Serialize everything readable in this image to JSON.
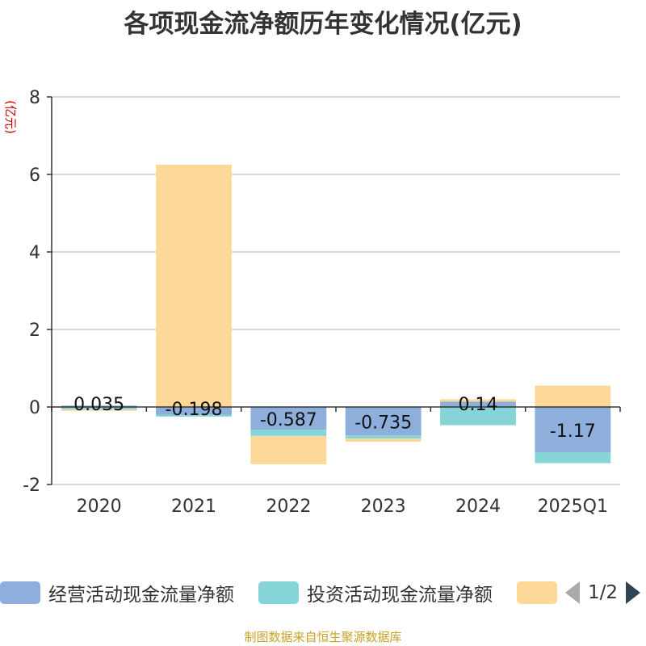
{
  "title": "各项现金流净额历年变化情况(亿元)",
  "source": "制图数据来自恒生聚源数据库",
  "colors": {
    "operating": "#8eaedb",
    "investing": "#85d4d8",
    "financing": "#fed898",
    "axis": "#333333",
    "grid": "#c8c8c8",
    "ylabel": "#cc0000"
  },
  "legend": {
    "items": [
      {
        "name": "经营活动现金流量净额",
        "color": "#8eaedb"
      },
      {
        "name": "投资活动现金流量净额",
        "color": "#85d4d8"
      },
      {
        "name": "",
        "color": "#fed898"
      }
    ],
    "page": "1/2"
  },
  "chart_data": {
    "type": "bar",
    "stacked": true,
    "ylabel": "(亿元)",
    "ylim": [
      -2,
      8
    ],
    "yticks": [
      -2,
      0,
      2,
      4,
      6,
      8
    ],
    "grid": true,
    "categories": [
      "2020",
      "2021",
      "2022",
      "2023",
      "2024",
      "2025Q1"
    ],
    "series": [
      {
        "name": "经营活动现金流量净额",
        "key": "operating",
        "values": [
          0.035,
          -0.198,
          -0.587,
          -0.735,
          0.14,
          -1.17
        ]
      },
      {
        "name": "投资活动现金流量净额",
        "key": "investing",
        "values": [
          -0.06,
          -0.05,
          -0.16,
          -0.08,
          -0.47,
          -0.28
        ]
      },
      {
        "name": "",
        "key": "financing",
        "values": [
          -0.04,
          6.25,
          -0.73,
          -0.08,
          0.06,
          0.55
        ]
      }
    ],
    "data_labels": [
      "0.035",
      "-0.198",
      "-0.587",
      "-0.735",
      "0.14",
      "-1.17"
    ]
  }
}
